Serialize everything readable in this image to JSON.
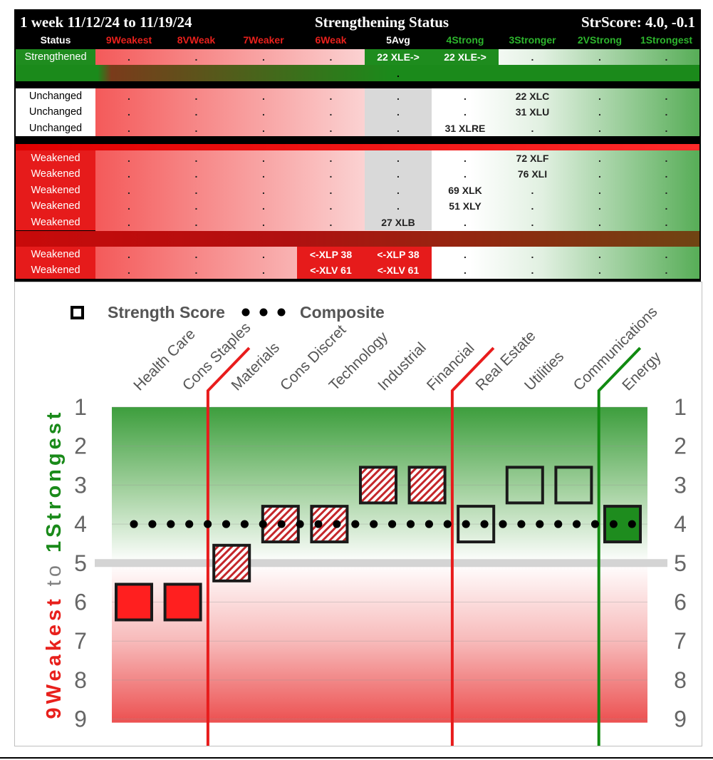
{
  "table": {
    "title_left": "1 week 11/12/24 to 11/19/24",
    "title_center": "Strengthening Status",
    "title_right": "StrScore: 4.0, -0.1",
    "columns": [
      {
        "label": "Status",
        "color": "#ffffff"
      },
      {
        "label": "9Weakest",
        "color": "#e8201c"
      },
      {
        "label": "8VWeak",
        "color": "#e8201c"
      },
      {
        "label": "7Weaker",
        "color": "#e8201c"
      },
      {
        "label": "6Weak",
        "color": "#e8201c"
      },
      {
        "label": "5Avg",
        "color": "#ffffff"
      },
      {
        "label": "4Strong",
        "color": "#2db52d"
      },
      {
        "label": "3Stronger",
        "color": "#2db52d"
      },
      {
        "label": "2VStrong",
        "color": "#2db52d"
      },
      {
        "label": "1Strongest",
        "color": "#2db52d"
      }
    ],
    "groups": [
      {
        "name": "strengthened",
        "rows": [
          {
            "status": "Strengthened",
            "cells": [
              ".",
              ".",
              ".",
              ".",
              "22 XLE->",
              "22 XLE->",
              ".",
              ".",
              "."
            ]
          }
        ],
        "extra_dot": "."
      },
      {
        "name": "unchanged",
        "rows": [
          {
            "status": "Unchanged",
            "cells": [
              ".",
              ".",
              ".",
              ".",
              ".",
              ".",
              "22 XLC",
              ".",
              "."
            ]
          },
          {
            "status": "Unchanged",
            "cells": [
              ".",
              ".",
              ".",
              ".",
              ".",
              ".",
              "31 XLU",
              ".",
              "."
            ]
          },
          {
            "status": "Unchanged",
            "cells": [
              ".",
              ".",
              ".",
              ".",
              ".",
              "31 XLRE",
              ".",
              ".",
              "."
            ]
          }
        ]
      },
      {
        "name": "weakened",
        "rows": [
          {
            "status": "Weakened",
            "cells": [
              ".",
              ".",
              ".",
              ".",
              ".",
              ".",
              "72 XLF",
              ".",
              "."
            ]
          },
          {
            "status": "Weakened",
            "cells": [
              ".",
              ".",
              ".",
              ".",
              ".",
              ".",
              "76 XLI",
              ".",
              "."
            ]
          },
          {
            "status": "Weakened",
            "cells": [
              ".",
              ".",
              ".",
              ".",
              ".",
              "69 XLK",
              ".",
              ".",
              "."
            ]
          },
          {
            "status": "Weakened",
            "cells": [
              ".",
              ".",
              ".",
              ".",
              ".",
              "51 XLY",
              ".",
              ".",
              "."
            ]
          },
          {
            "status": "Weakened",
            "cells": [
              ".",
              ".",
              ".",
              ".",
              "27 XLB",
              ".",
              ".",
              ".",
              "."
            ]
          }
        ]
      },
      {
        "name": "weakened-below",
        "rows": [
          {
            "status": "Weakened",
            "cells": [
              ".",
              ".",
              ".",
              "<-XLP 38",
              "<-XLP 38",
              ".",
              ".",
              ".",
              "."
            ]
          },
          {
            "status": "Weakened",
            "cells": [
              ".",
              ".",
              ".",
              "<-XLV 61",
              "<-XLV 61",
              ".",
              ".",
              ".",
              "."
            ]
          }
        ]
      }
    ]
  },
  "chart_data": {
    "type": "scatter",
    "legend": {
      "square_label": "Strength Score",
      "dots_label": "Composite"
    },
    "ylabel_red": "9Weakest",
    "ylabel_to": "to",
    "ylabel_green": "1Strongest",
    "yticks": [
      1,
      2,
      3,
      4,
      5,
      6,
      7,
      8,
      9
    ],
    "ylim": [
      1,
      9
    ],
    "y_reversed": true,
    "categories": [
      "Health Care",
      "Cons Staples",
      "Materials",
      "Cons Discret",
      "Technology",
      "Industrial",
      "Financial",
      "Real Estate",
      "Utilities",
      "Communications",
      "Energy"
    ],
    "strength_score": [
      6,
      6,
      5,
      4,
      4,
      3,
      3,
      4,
      3,
      3,
      4
    ],
    "marker_style": [
      "weak",
      "weak",
      "hatched",
      "hatched",
      "hatched",
      "hatched",
      "hatched",
      "unchanged",
      "unchanged",
      "unchanged",
      "strengthened"
    ],
    "composite": 4.0,
    "midline": 5,
    "dividers": [
      {
        "after_category": "Cons Staples",
        "color": "#e81c1c"
      },
      {
        "after_category": "Financial",
        "color": "#e81c1c"
      },
      {
        "after_category": "Communications",
        "color": "#118a11"
      }
    ],
    "colors": {
      "weak": "#ff1f1f",
      "strengthened": "#1e8c1e",
      "hatch": "#c4262a",
      "ylabel_red": "#e8201c",
      "ylabel_green": "#1a8a1a",
      "tick": "#666666"
    }
  }
}
